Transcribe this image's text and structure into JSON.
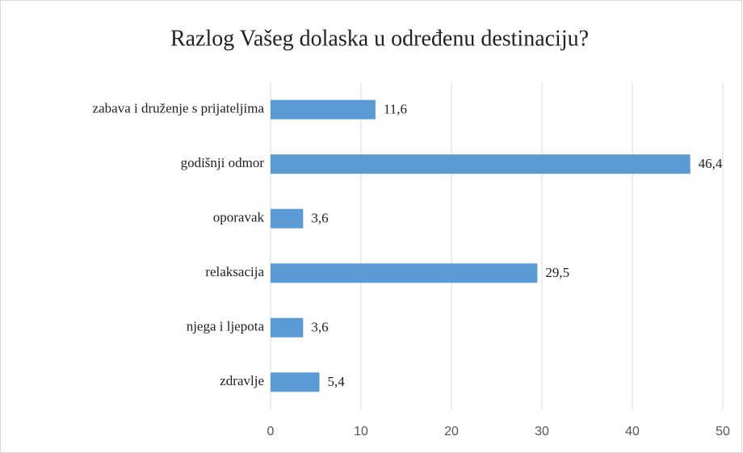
{
  "chart_data": {
    "type": "hbar",
    "title": "Razlog Vašeg dolaska u određenu destinaciju?",
    "categories": [
      "zabava i druženje s prijateljima",
      "godišnji odmor",
      "oporavak",
      "relaksacija",
      "njega i ljepota",
      "zdravlje"
    ],
    "values": [
      11.6,
      46.4,
      3.6,
      29.5,
      3.6,
      5.4
    ],
    "value_labels": [
      "11,6",
      "46,4",
      "3,6",
      "29,5",
      "3,6",
      "5,4"
    ],
    "color": "#5b9bd5",
    "xlim": [
      0,
      50
    ],
    "xticks": [
      0,
      10,
      20,
      30,
      40,
      50
    ],
    "grid": true
  }
}
